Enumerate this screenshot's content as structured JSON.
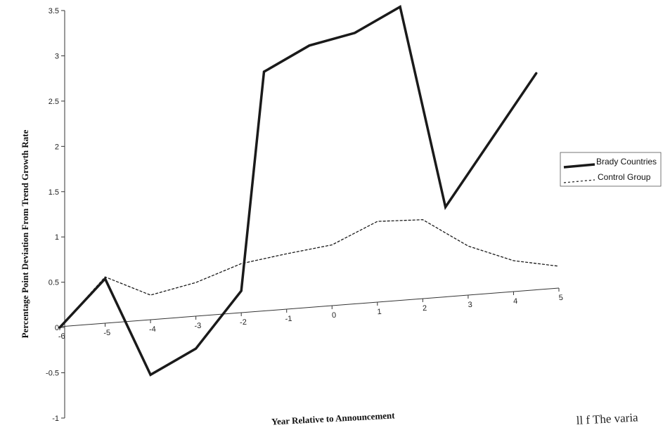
{
  "chart_data": {
    "type": "line",
    "title": "",
    "xlabel": "Year Relative to Announcement",
    "ylabel": "Percentage Point Deviation From Trend Growth Rate",
    "x": [
      -6,
      -5,
      -4,
      -3,
      -2,
      -1,
      0,
      1,
      2,
      3,
      4,
      5
    ],
    "x_tick_labels": [
      "-6",
      "-5",
      "-4",
      "-3",
      "-2",
      "-1",
      "0",
      "1",
      "2",
      "3",
      "4",
      "5"
    ],
    "ylim": [
      -1,
      3.5
    ],
    "y_ticks": [
      -1,
      -0.5,
      0,
      0.5,
      1,
      1.5,
      2,
      2.5,
      3,
      3.5
    ],
    "y_tick_labels": [
      "-1",
      "-0.5",
      "0",
      "0.5",
      "1",
      "1.5",
      "2",
      "2.5",
      "3",
      "3.5"
    ],
    "series": [
      {
        "name": "Brady Countries",
        "style": "solid",
        "color": "#1a1a1a",
        "values": [
          0,
          0.5,
          -0.6,
          -0.35,
          0.25,
          2.65,
          2.9,
          3.0,
          3.25,
          1.0,
          1.7,
          2.4
        ]
      },
      {
        "name": "Control Group",
        "style": "dotted",
        "color": "#1a1a1a",
        "values": [
          0,
          0.52,
          0.28,
          0.38,
          0.55,
          0.62,
          0.68,
          0.9,
          0.88,
          0.55,
          0.35,
          0.25
        ]
      }
    ],
    "legend": {
      "position": "right",
      "entries": [
        "Brady Countries",
        "Control Group"
      ]
    },
    "grid": false
  },
  "margin_note": "ll f The varia"
}
